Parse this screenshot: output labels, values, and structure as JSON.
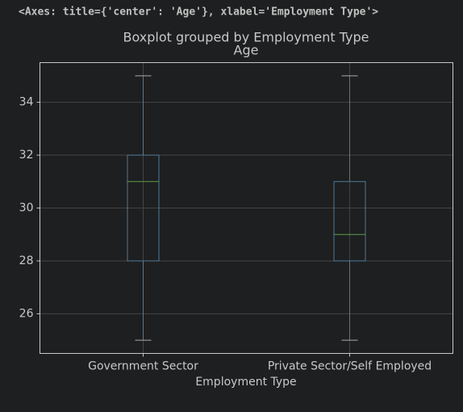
{
  "cell_output": "<Axes: title={'center': 'Age'}, xlabel='Employment Type'>",
  "chart_data": {
    "type": "box",
    "suptitle": "Boxplot grouped by Employment Type",
    "title": "Age",
    "x_label": "Employment Type",
    "categories": [
      "Government Sector",
      "Private Sector/Self Employed"
    ],
    "whisker_low": [
      25,
      25
    ],
    "q1": [
      28,
      28
    ],
    "median": [
      31,
      29
    ],
    "q3": [
      32,
      31
    ],
    "whisker_high": [
      35,
      35
    ],
    "box_color": "#4f7a99",
    "median_color": "#5a9e4c",
    "ylim": [
      24.5,
      35.5
    ],
    "yticks": [
      26,
      28,
      30,
      32,
      34
    ],
    "grid": true
  }
}
